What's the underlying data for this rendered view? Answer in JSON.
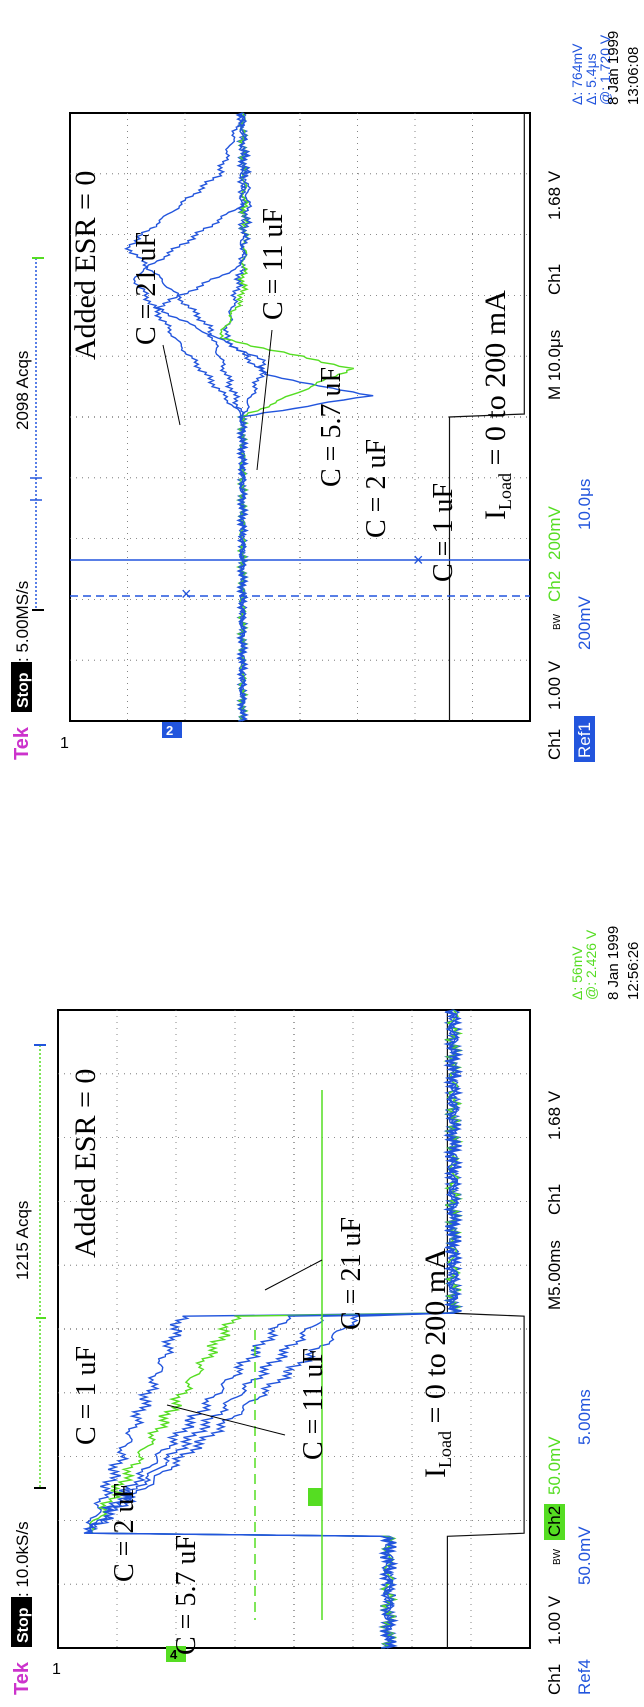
{
  "colors": {
    "ch1": "#111111",
    "ref": "#2255dd",
    "ch2": "#55dd22",
    "tek": "#cc33cc",
    "grid": "#666666",
    "badge_bg": "#000000",
    "badge_fg": "#ffffff",
    "ref1_bg": "#2255dd"
  },
  "scopes": [
    {
      "id": "top",
      "header": {
        "brand": "Tek",
        "state": "Stop",
        "rate": ": 5.00MS/s",
        "acqs": "2098 Acqs"
      },
      "cursor_readout": [
        "Δ: 764mV",
        "Δ: 5.4μs",
        "@: 1.720 V"
      ],
      "timestamp": [
        "8 Jan 1999",
        "13:06:08"
      ],
      "footer": {
        "ch1_label": "Ch1",
        "ch1_scale": "1.00 V",
        "bw": "BW",
        "ch2_label": "Ch2",
        "ch2_scale": "200mV",
        "timebase": "M 10.0μs",
        "trigger_src": "Ch1",
        "trigger_level": "1.68 V",
        "ref_label": "Ref1",
        "ref_scale": "200mV",
        "ref_time": "10.0μs"
      },
      "marker_left": "2",
      "ground_marker": "1",
      "annotations": [
        "Added ESR = 0",
        "C = 21 uF",
        "C = 11 uF",
        "C = 5.7 uF",
        "C = 2 uF",
        "C = 1 uF"
      ],
      "load_label": {
        "main": "I",
        "sub": "Load",
        "rest": " = 0 to 200 mA"
      }
    },
    {
      "id": "bottom",
      "header": {
        "brand": "Tek",
        "state": "Stop",
        "rate": ": 10.0kS/s",
        "acqs": "1215 Acqs"
      },
      "cursor_readout": [
        "Δ: 56mV",
        "@: 2.426 V"
      ],
      "timestamp": [
        "8 Jan 1999",
        "12:56:26"
      ],
      "footer": {
        "ch1_label": "Ch1",
        "ch1_scale": "1.00 V",
        "bw": "BW",
        "ch2_label": "Ch2",
        "ch2_scale": "50.0mV",
        "timebase": "M5.00ms",
        "trigger_src": "Ch1",
        "trigger_level": "1.68 V",
        "ref_label": "Ref4",
        "ref_scale": "50.0mV",
        "ref_time": "5.00ms"
      },
      "marker_left": "4",
      "ground_marker": "1",
      "annotations": [
        "Added ESR = 0",
        "C = 1 uF",
        "C = 2 uF",
        "C = 5.7 uF",
        "C = 11 uF",
        "C = 21 uF"
      ],
      "load_label": {
        "main": "I",
        "sub": "Load",
        "rest": " = 0 to 200 mA"
      }
    }
  ],
  "chart_data": [
    {
      "type": "line",
      "xlabel": "",
      "ylabel": "",
      "grid": true,
      "x_units": "divisions (10.0μs/div)",
      "xlim": [
        0,
        10
      ],
      "ylim": [
        -4,
        4
      ],
      "y_units": "divisions",
      "series": [
        {
          "name": "Ch1",
          "x": [
            0,
            5.0,
            5.05,
            10
          ],
          "y": [
            -2.6,
            -2.6,
            -3.9,
            -3.9
          ]
        },
        {
          "name": "C = 1 uF",
          "x": [
            0,
            5.0,
            5.35,
            5.7,
            6.3,
            7.5,
            10
          ],
          "y": [
            1.0,
            1.0,
            -1.2,
            0.6,
            1.3,
            1.0,
            1.0
          ]
        },
        {
          "name": "C = 2 uF",
          "x": [
            0,
            5.0,
            5.8,
            6.3,
            7.0,
            8.0,
            10
          ],
          "y": [
            1.0,
            1.0,
            -0.9,
            1.4,
            1.0,
            0.95,
            1.0
          ]
        },
        {
          "name": "C = 5.7 uF",
          "x": [
            0,
            5.0,
            5.9,
            6.8,
            7.5,
            8.5,
            10
          ],
          "y": [
            1.0,
            1.0,
            0.6,
            2.5,
            1.0,
            0.9,
            1.0
          ]
        },
        {
          "name": "C = 11 uF",
          "x": [
            0,
            5.0,
            6.2,
            7.3,
            8.5,
            10
          ],
          "y": [
            1.0,
            1.0,
            2.1,
            2.9,
            1.0,
            1.0
          ]
        },
        {
          "name": "C = 21 uF",
          "x": [
            0,
            5.0,
            6.5,
            7.8,
            9.0,
            10
          ],
          "y": [
            1.0,
            1.0,
            1.6,
            3.0,
            1.4,
            1.0
          ]
        }
      ]
    },
    {
      "type": "line",
      "xlabel": "",
      "ylabel": "",
      "grid": true,
      "x_units": "divisions (5.00ms/div)",
      "xlim": [
        0,
        10
      ],
      "ylim": [
        -4,
        4
      ],
      "y_units": "divisions",
      "series": [
        {
          "name": "Ch1",
          "x": [
            0,
            1.75,
            1.8,
            5.2,
            5.25,
            10
          ],
          "y": [
            -2.6,
            -2.6,
            -3.9,
            -3.9,
            -2.6,
            -2.6
          ]
        },
        {
          "name": "C = 1 uF",
          "x": [
            0,
            1.75,
            1.8,
            5.2,
            5.25,
            8.5,
            10
          ],
          "y": [
            -1.6,
            -1.6,
            3.5,
            1.9,
            -2.7,
            -2.7,
            -2.7
          ]
        },
        {
          "name": "C = 2 uF",
          "x": [
            0,
            1.75,
            1.8,
            5.2,
            5.25,
            8.5,
            10
          ],
          "y": [
            -1.6,
            -1.6,
            3.5,
            1.0,
            -2.7,
            -2.7,
            -2.7
          ]
        },
        {
          "name": "C = 5.7 uF",
          "x": [
            0,
            1.75,
            1.8,
            5.2,
            5.25,
            8.5,
            10
          ],
          "y": [
            -1.6,
            -1.6,
            3.5,
            0.1,
            -2.7,
            -2.7,
            -2.7
          ]
        },
        {
          "name": "C = 11 uF",
          "x": [
            0,
            1.75,
            1.8,
            5.2,
            5.25,
            8.5,
            10
          ],
          "y": [
            -1.6,
            -1.6,
            3.5,
            -0.5,
            -2.7,
            -2.7,
            -2.7
          ]
        },
        {
          "name": "C = 21 uF",
          "x": [
            0,
            1.75,
            1.8,
            5.2,
            5.25,
            8.5,
            10
          ],
          "y": [
            -1.6,
            -1.6,
            3.5,
            -1.1,
            -2.7,
            -2.7,
            -2.7
          ]
        }
      ]
    }
  ]
}
